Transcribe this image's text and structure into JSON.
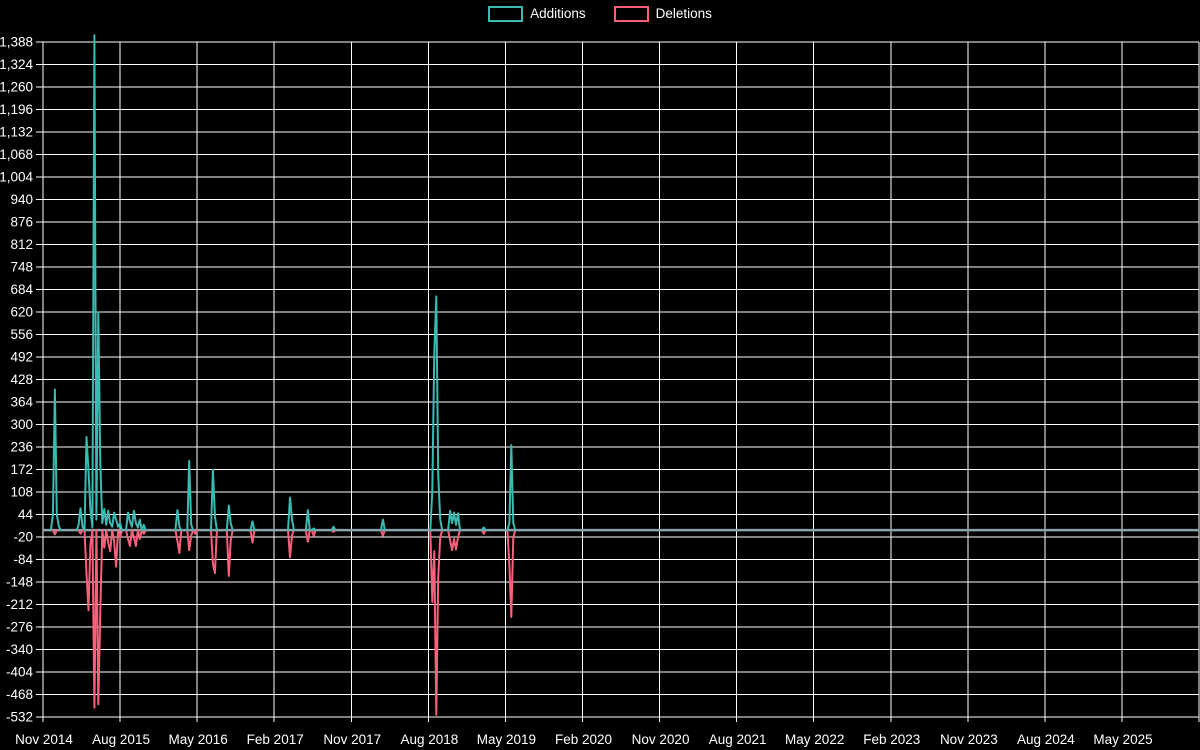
{
  "legend": {
    "additions_label": "Additions",
    "deletions_label": "Deletions"
  },
  "colors": {
    "background": "#000000",
    "grid": "#ffffff",
    "text": "#ffffff",
    "zero_line": "#8aa2ad",
    "additions": "#3bbab2",
    "deletions": "#f9607c"
  },
  "chart_data": {
    "type": "line",
    "title": "",
    "xlabel": "",
    "ylabel": "",
    "grid": true,
    "legend_position": "top-center",
    "x_tick_labels": [
      "Nov 2014",
      "Aug 2015",
      "May 2016",
      "Feb 2017",
      "Nov 2017",
      "Aug 2018",
      "May 2019",
      "Feb 2020",
      "Nov 2020",
      "Aug 2021",
      "May 2022",
      "Feb 2023",
      "Nov 2023",
      "Aug 2024",
      "May 2025"
    ],
    "weeks_per_x_tick": 39,
    "total_weeks": 585,
    "y_ticks": [
      1388,
      1324,
      1260,
      1196,
      1132,
      1068,
      1004,
      940,
      876,
      812,
      748,
      684,
      620,
      556,
      492,
      428,
      364,
      300,
      236,
      172,
      108,
      44,
      -20,
      -84,
      -148,
      -212,
      -276,
      -340,
      -404,
      -468,
      -532
    ],
    "ylim": [
      -532,
      1408
    ],
    "series": [
      {
        "name": "Additions",
        "color_key": "additions",
        "points": [
          [
            5,
            44
          ],
          [
            6,
            400
          ],
          [
            7,
            44
          ],
          [
            8,
            12
          ],
          [
            18,
            15
          ],
          [
            19,
            62
          ],
          [
            20,
            10
          ],
          [
            22,
            265
          ],
          [
            23,
            170
          ],
          [
            24,
            60
          ],
          [
            25,
            8
          ],
          [
            26,
            1408
          ],
          [
            27,
            30
          ],
          [
            28,
            620
          ],
          [
            29,
            190
          ],
          [
            30,
            20
          ],
          [
            31,
            60
          ],
          [
            32,
            15
          ],
          [
            33,
            55
          ],
          [
            34,
            20
          ],
          [
            35,
            10
          ],
          [
            36,
            50
          ],
          [
            37,
            30
          ],
          [
            38,
            10
          ],
          [
            39,
            20
          ],
          [
            43,
            50
          ],
          [
            44,
            25
          ],
          [
            45,
            10
          ],
          [
            46,
            55
          ],
          [
            47,
            20
          ],
          [
            48,
            8
          ],
          [
            49,
            30
          ],
          [
            51,
            15
          ],
          [
            68,
            57
          ],
          [
            69,
            10
          ],
          [
            74,
            197
          ],
          [
            75,
            15
          ],
          [
            86,
            172
          ],
          [
            87,
            40
          ],
          [
            94,
            70
          ],
          [
            95,
            20
          ],
          [
            106,
            25
          ],
          [
            125,
            93
          ],
          [
            126,
            30
          ],
          [
            134,
            57
          ],
          [
            137,
            5
          ],
          [
            147,
            10
          ],
          [
            172,
            30
          ],
          [
            197,
            112
          ],
          [
            198,
            505
          ],
          [
            199,
            665
          ],
          [
            200,
            160
          ],
          [
            201,
            30
          ],
          [
            206,
            55
          ],
          [
            207,
            20
          ],
          [
            208,
            50
          ],
          [
            209,
            15
          ],
          [
            210,
            48
          ],
          [
            223,
            8
          ],
          [
            236,
            20
          ],
          [
            237,
            242
          ],
          [
            238,
            20
          ]
        ]
      },
      {
        "name": "Deletions",
        "color_key": "deletions",
        "points": [
          [
            6,
            -12
          ],
          [
            19,
            -10
          ],
          [
            22,
            -123
          ],
          [
            23,
            -228
          ],
          [
            24,
            -40
          ],
          [
            26,
            -505
          ],
          [
            28,
            -495
          ],
          [
            29,
            -230
          ],
          [
            31,
            -50
          ],
          [
            33,
            -35
          ],
          [
            34,
            -60
          ],
          [
            36,
            -30
          ],
          [
            37,
            -104
          ],
          [
            39,
            -20
          ],
          [
            43,
            -25
          ],
          [
            44,
            -45
          ],
          [
            46,
            -20
          ],
          [
            47,
            -45
          ],
          [
            49,
            -25
          ],
          [
            51,
            -10
          ],
          [
            68,
            -30
          ],
          [
            69,
            -65
          ],
          [
            74,
            -57
          ],
          [
            75,
            -15
          ],
          [
            77,
            -10
          ],
          [
            86,
            -95
          ],
          [
            87,
            -122
          ],
          [
            94,
            -130
          ],
          [
            95,
            -30
          ],
          [
            106,
            -35
          ],
          [
            125,
            -77
          ],
          [
            126,
            -15
          ],
          [
            134,
            -33
          ],
          [
            137,
            -16
          ],
          [
            147,
            -5
          ],
          [
            172,
            -16
          ],
          [
            197,
            -204
          ],
          [
            198,
            -60
          ],
          [
            199,
            -525
          ],
          [
            200,
            -135
          ],
          [
            201,
            -20
          ],
          [
            206,
            -30
          ],
          [
            207,
            -57
          ],
          [
            208,
            -25
          ],
          [
            209,
            -55
          ],
          [
            210,
            -20
          ],
          [
            223,
            -10
          ],
          [
            236,
            -100
          ],
          [
            237,
            -247
          ],
          [
            238,
            -20
          ]
        ]
      }
    ]
  }
}
